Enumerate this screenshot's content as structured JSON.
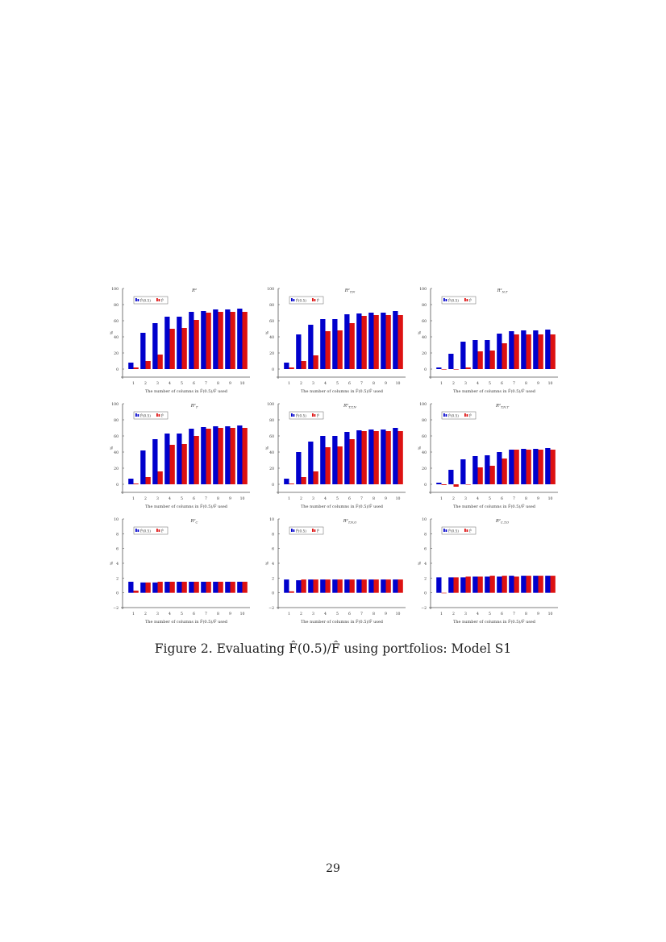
{
  "figure": {
    "caption": "Figure 2. Evaluating F̂(0.5)/F̂ using portfolios: Model S1",
    "page_number": "29"
  },
  "colors": {
    "f05": "#0000cc",
    "fhat": "#dd1111"
  },
  "legend": {
    "series1": "F̂(0.5)",
    "series2": "F̂"
  },
  "chart_data": [
    {
      "type": "bar",
      "title": "R²",
      "categories": [
        "1",
        "2",
        "3",
        "4",
        "5",
        "6",
        "7",
        "8",
        "9",
        "10"
      ],
      "series": [
        {
          "name": "F̂(0.5)",
          "values": [
            8,
            45,
            57,
            65,
            65,
            71,
            72,
            74,
            74,
            75
          ]
        },
        {
          "name": "F̂",
          "values": [
            2,
            10,
            18,
            50,
            51,
            61,
            70,
            71,
            71,
            71
          ]
        }
      ],
      "xlabel": "The number of columns in F̂(0.5)/F̂ used",
      "ylabel": "%",
      "ylim": [
        -10,
        100
      ],
      "yticks": [
        0,
        20,
        40,
        60,
        80,
        100
      ],
      "legend_position": "upper left",
      "grid": false
    },
    {
      "type": "bar",
      "title": "R²_T,N",
      "categories": [
        "1",
        "2",
        "3",
        "4",
        "5",
        "6",
        "7",
        "8",
        "9",
        "10"
      ],
      "series": [
        {
          "name": "F̂(0.5)",
          "values": [
            8,
            43,
            55,
            62,
            62,
            68,
            69,
            70,
            70,
            72
          ]
        },
        {
          "name": "F̂",
          "values": [
            2,
            10,
            17,
            47,
            48,
            57,
            66,
            67,
            67,
            67
          ]
        }
      ],
      "xlabel": "The number of columns in F̂(0.5)/F̂ used",
      "ylabel": "%",
      "ylim": [
        -10,
        100
      ],
      "yticks": [
        0,
        20,
        40,
        60,
        80,
        100
      ],
      "legend_position": "upper left",
      "grid": false
    },
    {
      "type": "bar",
      "title": "R²_N,T",
      "categories": [
        "1",
        "2",
        "3",
        "4",
        "5",
        "6",
        "7",
        "8",
        "9",
        "10"
      ],
      "series": [
        {
          "name": "F̂(0.5)",
          "values": [
            2,
            19,
            34,
            36,
            36,
            44,
            47,
            48,
            48,
            49
          ]
        },
        {
          "name": "F̂",
          "values": [
            0,
            0,
            2,
            22,
            23,
            32,
            43,
            43,
            43,
            43
          ]
        }
      ],
      "xlabel": "The number of columns in F̂(0.5)/F̂ used",
      "ylabel": "%",
      "ylim": [
        -10,
        100
      ],
      "yticks": [
        0,
        20,
        40,
        60,
        80,
        100
      ],
      "legend_position": "upper left",
      "grid": false
    },
    {
      "type": "bar",
      "title": "R²_T",
      "categories": [
        "1",
        "2",
        "3",
        "4",
        "5",
        "6",
        "7",
        "8",
        "9",
        "10"
      ],
      "series": [
        {
          "name": "F̂(0.5)",
          "values": [
            7,
            42,
            56,
            63,
            63,
            69,
            71,
            72,
            72,
            73
          ]
        },
        {
          "name": "F̂",
          "values": [
            1,
            9,
            16,
            49,
            50,
            60,
            69,
            70,
            70,
            70
          ]
        }
      ],
      "xlabel": "The number of columns in F̂(0.5)/F̂ used",
      "ylabel": "%",
      "ylim": [
        -10,
        100
      ],
      "yticks": [
        0,
        20,
        40,
        60,
        80,
        100
      ],
      "legend_position": "upper left",
      "grid": false
    },
    {
      "type": "bar",
      "title": "R²_T,T,N",
      "categories": [
        "1",
        "2",
        "3",
        "4",
        "5",
        "6",
        "7",
        "8",
        "9",
        "10"
      ],
      "series": [
        {
          "name": "F̂(0.5)",
          "values": [
            7,
            40,
            53,
            60,
            60,
            65,
            67,
            68,
            68,
            70
          ]
        },
        {
          "name": "F̂",
          "values": [
            1,
            9,
            16,
            46,
            47,
            56,
            66,
            66,
            66,
            66
          ]
        }
      ],
      "xlabel": "The number of columns in F̂(0.5)/F̂ used",
      "ylabel": "%",
      "ylim": [
        -10,
        100
      ],
      "yticks": [
        0,
        20,
        40,
        60,
        80,
        100
      ],
      "legend_position": "upper left",
      "grid": false
    },
    {
      "type": "bar",
      "title": "R²_T,N,T",
      "categories": [
        "1",
        "2",
        "3",
        "4",
        "5",
        "6",
        "7",
        "8",
        "9",
        "10"
      ],
      "series": [
        {
          "name": "F̂(0.5)",
          "values": [
            2,
            18,
            31,
            35,
            36,
            40,
            43,
            44,
            44,
            45
          ]
        },
        {
          "name": "F̂",
          "values": [
            -1,
            -3,
            0,
            21,
            23,
            32,
            43,
            43,
            43,
            43
          ]
        }
      ],
      "xlabel": "The number of columns in F̂(0.5)/F̂ used",
      "ylabel": "%",
      "ylim": [
        -10,
        100
      ],
      "yticks": [
        0,
        20,
        40,
        60,
        80,
        100
      ],
      "legend_position": "upper left",
      "grid": false
    },
    {
      "type": "bar",
      "title": "R²_C",
      "categories": [
        "1",
        "2",
        "3",
        "4",
        "5",
        "6",
        "7",
        "8",
        "9",
        "10"
      ],
      "series": [
        {
          "name": "F̂(0.5)",
          "values": [
            1.5,
            1.4,
            1.4,
            1.5,
            1.5,
            1.5,
            1.5,
            1.5,
            1.5,
            1.5
          ]
        },
        {
          "name": "F̂",
          "values": [
            0.3,
            1.4,
            1.5,
            1.5,
            1.5,
            1.5,
            1.5,
            1.5,
            1.5,
            1.5
          ]
        }
      ],
      "xlabel": "The number of columns in F̂(0.5)/F̂ used",
      "ylabel": "%",
      "ylim": [
        -2,
        10
      ],
      "yticks": [
        -2,
        0,
        2,
        4,
        6,
        8,
        10
      ],
      "legend_position": "upper left",
      "grid": false
    },
    {
      "type": "bar",
      "title": "R²_T,N,O",
      "categories": [
        "1",
        "2",
        "3",
        "4",
        "5",
        "6",
        "7",
        "8",
        "9",
        "10"
      ],
      "series": [
        {
          "name": "F̂(0.5)",
          "values": [
            1.8,
            1.7,
            1.8,
            1.8,
            1.8,
            1.8,
            1.8,
            1.8,
            1.8,
            1.8
          ]
        },
        {
          "name": "F̂",
          "values": [
            0.2,
            1.8,
            1.8,
            1.8,
            1.8,
            1.8,
            1.8,
            1.8,
            1.8,
            1.8
          ]
        }
      ],
      "xlabel": "The number of columns in F̂(0.5)/F̂ used",
      "ylabel": "%",
      "ylim": [
        -2,
        10
      ],
      "yticks": [
        -2,
        0,
        2,
        4,
        6,
        8,
        10
      ],
      "legend_position": "upper left",
      "grid": false
    },
    {
      "type": "bar",
      "title": "R²_C,T,O",
      "categories": [
        "1",
        "2",
        "3",
        "4",
        "5",
        "6",
        "7",
        "8",
        "9",
        "10"
      ],
      "series": [
        {
          "name": "F̂(0.5)",
          "values": [
            2.1,
            2.1,
            2.1,
            2.2,
            2.2,
            2.2,
            2.3,
            2.3,
            2.3,
            2.3
          ]
        },
        {
          "name": "F̂",
          "values": [
            0.0,
            2.1,
            2.2,
            2.2,
            2.3,
            2.3,
            2.2,
            2.3,
            2.3,
            2.3
          ]
        }
      ],
      "xlabel": "The number of columns in F̂(0.5)/F̂ used",
      "ylabel": "%",
      "ylim": [
        -2,
        10
      ],
      "yticks": [
        -2,
        0,
        2,
        4,
        6,
        8,
        10
      ],
      "legend_position": "upper left",
      "grid": false
    }
  ]
}
